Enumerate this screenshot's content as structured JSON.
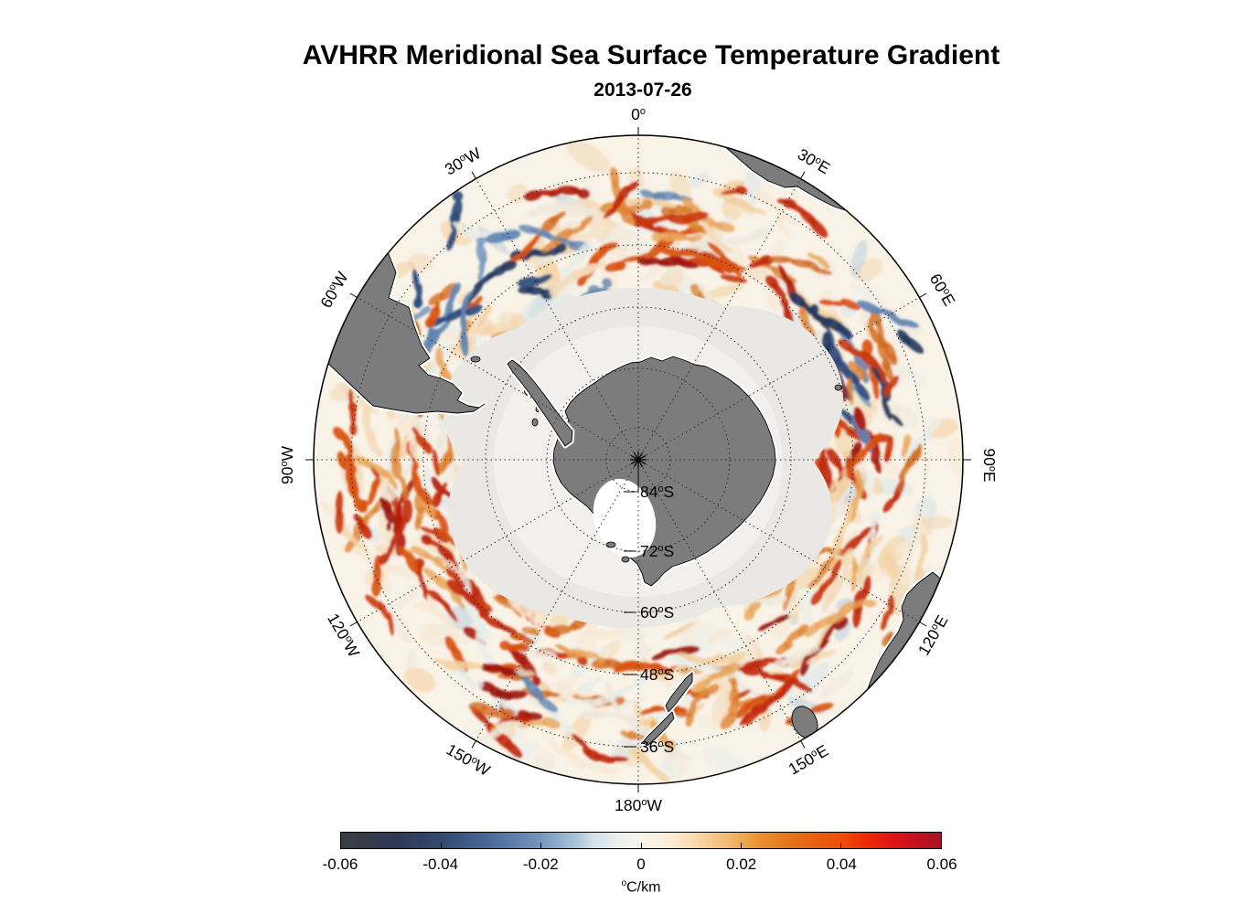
{
  "figure": {
    "title": "AVHRR Meridional Sea Surface Temperature Gradient",
    "subtitle": "2013-07-26"
  },
  "map": {
    "projection_center": "South Pole",
    "longitude_labels": [
      {
        "text": "0°",
        "angle": 0,
        "rot": 0
      },
      {
        "text": "30°E",
        "angle": 30,
        "rot": 30
      },
      {
        "text": "60°E",
        "angle": 60,
        "rot": 60
      },
      {
        "text": "90°E",
        "angle": 90,
        "rot": 90
      },
      {
        "text": "120°E",
        "angle": 120,
        "rot": -60
      },
      {
        "text": "150°E",
        "angle": 150,
        "rot": -30
      },
      {
        "text": "180°W",
        "angle": 180,
        "rot": 0
      },
      {
        "text": "150°W",
        "angle": 210,
        "rot": 30
      },
      {
        "text": "120°W",
        "angle": 240,
        "rot": 60
      },
      {
        "text": "90°W",
        "angle": 270,
        "rot": -90
      },
      {
        "text": "60°W",
        "angle": 300,
        "rot": -60
      },
      {
        "text": "30°W",
        "angle": 330,
        "rot": -30
      }
    ],
    "latitude_labels": [
      {
        "text": "84°S",
        "radius": 35
      },
      {
        "text": "72°S",
        "radius": 100
      },
      {
        "text": "60°S",
        "radius": 167
      },
      {
        "text": "48°S",
        "radius": 235
      },
      {
        "text": "36°S",
        "radius": 314
      }
    ],
    "colors": {
      "land": "#7c7c7c",
      "land_outline": "#000000",
      "land_halo": "#ffffff",
      "ice_zone": "#e9e8e4",
      "ice_inner": "#f1f0ed",
      "ocean_base": "#f9f2e7",
      "graticule": "#2b2b2b",
      "boundary": "#000000"
    },
    "field_palette": {
      "pale": [
        "#f7e8d4",
        "#f3d9b6",
        "#f3cf9f",
        "#eee9dd",
        "#e7eee9"
      ],
      "orange": [
        "#e9a558",
        "#de8433",
        "#d2691e"
      ],
      "strong": [
        "#d95310",
        "#cb3a0d",
        "#c22a0c"
      ],
      "red_dark": [
        "#b01c10",
        "#9d1410"
      ],
      "blue_dark": [
        "#2e4b7b",
        "#233a60"
      ],
      "blue_mid": [
        "#5f84b1",
        "#7d9cc2"
      ],
      "blue_pale": [
        "#bccfdf",
        "#d9e5ea"
      ]
    }
  },
  "colorbar": {
    "ticks": [
      "-0.06",
      "-0.04",
      "-0.02",
      "0",
      "0.02",
      "0.04",
      "0.06"
    ],
    "unit": "°C/km",
    "min": -0.06,
    "max": 0.06,
    "stops": [
      [
        "#3a3c41",
        0.0
      ],
      [
        "#2e3a55",
        0.09
      ],
      [
        "#32496f",
        0.167
      ],
      [
        "#4a6c9b",
        0.25
      ],
      [
        "#7496bf",
        0.333
      ],
      [
        "#a8c2d9",
        0.39
      ],
      [
        "#d2e0ea",
        0.42
      ],
      [
        "#e9efee",
        0.46
      ],
      [
        "#f7f4ea",
        0.5
      ],
      [
        "#fdeed8",
        0.545
      ],
      [
        "#f9dcb3",
        0.583
      ],
      [
        "#f3ba72",
        0.645
      ],
      [
        "#ea8e2e",
        0.7
      ],
      [
        "#e4731a",
        0.75
      ],
      [
        "#ed4e0a",
        0.833
      ],
      [
        "#ef2a06",
        0.875
      ],
      [
        "#e01515",
        0.917
      ],
      [
        "#c2111f",
        0.96
      ],
      [
        "#a81427",
        1.0
      ]
    ]
  }
}
